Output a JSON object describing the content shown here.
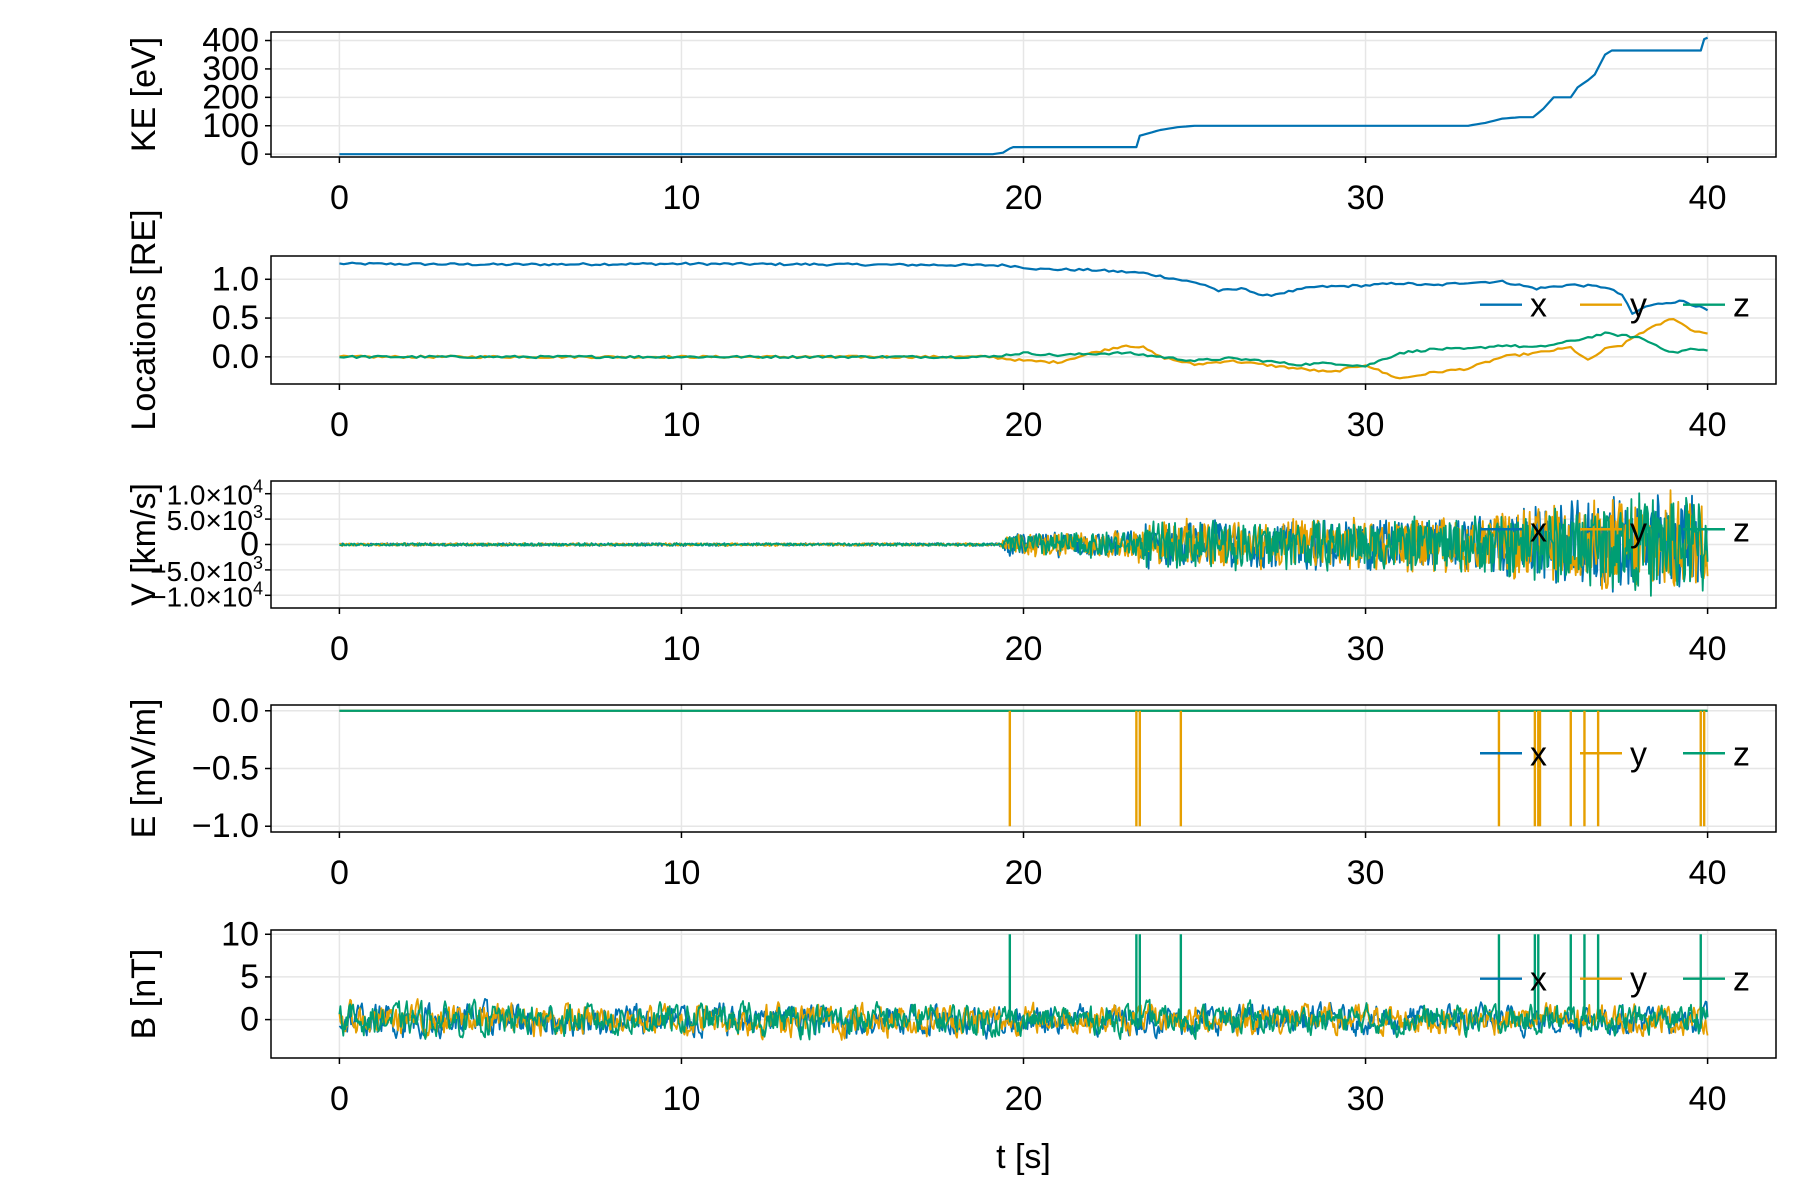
{
  "colors": {
    "x": "#0072B2",
    "y": "#E69F00",
    "z": "#009E73",
    "grid": "#e6e6e6",
    "frame": "#000000"
  },
  "chart_data": [
    {
      "type": "line",
      "ylabel": "KE [eV]",
      "xlabel": "",
      "xlim": [
        -2,
        42
      ],
      "ylim": [
        -10,
        430
      ],
      "xticks": [
        0,
        10,
        20,
        30,
        40
      ],
      "xtick_labels": [
        "0",
        "10",
        "20",
        "30",
        "40"
      ],
      "yticks": [
        0,
        100,
        200,
        300,
        400
      ],
      "ytick_labels": [
        "0",
        "100",
        "200",
        "300",
        "400"
      ],
      "legend": null,
      "series": [
        {
          "key": "x",
          "x": [
            0,
            19.1,
            19.4,
            19.6,
            19.7,
            23.3,
            23.4,
            24.0,
            24.5,
            25.0,
            29.0,
            33.0,
            33.5,
            34.0,
            34.5,
            34.9,
            35.2,
            35.5,
            36.0,
            36.2,
            36.5,
            36.7,
            37.0,
            37.2,
            39.2,
            39.8,
            39.9,
            40.0
          ],
          "y": [
            0,
            0,
            5,
            20,
            25,
            25,
            65,
            85,
            95,
            100,
            100,
            100,
            110,
            125,
            130,
            130,
            160,
            200,
            200,
            235,
            260,
            280,
            350,
            365,
            365,
            365,
            405,
            410
          ]
        }
      ]
    },
    {
      "type": "line",
      "ylabel": "Locations [RE]",
      "xlabel": "",
      "xlim": [
        -2,
        42
      ],
      "ylim": [
        -0.35,
        1.3
      ],
      "xticks": [
        0,
        10,
        20,
        30,
        40
      ],
      "xtick_labels": [
        "0",
        "10",
        "20",
        "30",
        "40"
      ],
      "yticks": [
        0.0,
        0.5,
        1.0
      ],
      "ytick_labels": [
        "0.0",
        "0.5",
        "1.0"
      ],
      "legend": {
        "position": "right",
        "entries": [
          "x",
          "y",
          "z"
        ]
      },
      "series": [
        {
          "key": "x",
          "x": [
            0,
            5,
            10,
            15,
            19.5,
            20.5,
            22,
            23.5,
            24.5,
            25.3,
            25.7,
            26.5,
            27,
            27.5,
            28.5,
            30,
            31,
            32,
            33,
            34,
            35,
            36,
            37,
            37.5,
            37.8,
            38.2,
            38.8,
            39.3,
            40
          ],
          "y": [
            1.2,
            1.19,
            1.2,
            1.19,
            1.18,
            1.13,
            1.12,
            1.08,
            1.0,
            0.93,
            0.85,
            0.88,
            0.78,
            0.82,
            0.9,
            0.92,
            0.95,
            0.92,
            0.96,
            0.97,
            0.88,
            0.93,
            0.9,
            0.8,
            0.55,
            0.65,
            0.7,
            0.72,
            0.6
          ]
        },
        {
          "key": "y",
          "x": [
            0,
            10,
            19,
            20,
            21,
            22,
            23,
            23.5,
            24,
            25,
            26,
            27,
            28,
            29,
            30,
            30.5,
            31,
            32,
            33,
            34,
            35,
            36,
            36.5,
            37,
            37.5,
            38,
            38.5,
            39,
            39.5,
            40
          ],
          "y": [
            0.0,
            0.0,
            0.0,
            -0.05,
            -0.07,
            0.05,
            0.15,
            0.12,
            0.0,
            -0.1,
            -0.05,
            -0.1,
            -0.15,
            -0.2,
            -0.1,
            -0.2,
            -0.28,
            -0.2,
            -0.15,
            0.0,
            0.05,
            0.12,
            -0.05,
            0.1,
            0.15,
            0.3,
            0.4,
            0.5,
            0.35,
            0.3
          ]
        },
        {
          "key": "z",
          "x": [
            0,
            10,
            19,
            20,
            21,
            22,
            23,
            24,
            25,
            26,
            27,
            28,
            29,
            30,
            31,
            32,
            33,
            34,
            35,
            36,
            37,
            38,
            38.5,
            39,
            39.5,
            40
          ],
          "y": [
            0.0,
            0.0,
            0.0,
            0.05,
            0.02,
            0.04,
            0.05,
            0.0,
            -0.05,
            -0.02,
            -0.05,
            -0.1,
            -0.08,
            -0.12,
            0.05,
            0.1,
            0.1,
            0.15,
            0.12,
            0.2,
            0.3,
            0.25,
            0.15,
            0.05,
            0.1,
            0.08
          ]
        }
      ]
    },
    {
      "type": "line",
      "ylabel": "V [km/s]",
      "xlabel": "",
      "xlim": [
        -2,
        42
      ],
      "ylim": [
        -12500,
        12500
      ],
      "xticks": [
        0,
        10,
        20,
        30,
        40
      ],
      "xtick_labels": [
        "0",
        "10",
        "20",
        "30",
        "40"
      ],
      "yticks": [
        -10000,
        -5000,
        0,
        5000,
        10000
      ],
      "ytick_labels": [
        [
          "−1.0×10",
          "4"
        ],
        [
          "−5.0×10",
          "3"
        ],
        [
          "0",
          ""
        ],
        [
          "5.0×10",
          "3"
        ],
        [
          "1.0×10",
          "4"
        ]
      ],
      "legend": {
        "position": "right",
        "entries": [
          "x",
          "y",
          "z"
        ]
      },
      "series_style": "oscillating",
      "envelope": {
        "t": [
          0,
          19.3,
          19.6,
          23.3,
          23.5,
          33,
          35,
          38,
          40
        ],
        "amp": [
          300,
          300,
          2500,
          3000,
          5000,
          6000,
          8000,
          11000,
          11000
        ]
      },
      "series": [
        {
          "key": "x"
        },
        {
          "key": "y"
        },
        {
          "key": "z"
        }
      ]
    },
    {
      "type": "line",
      "ylabel": "E [mV/m]",
      "xlabel": "",
      "xlim": [
        -2,
        42
      ],
      "ylim": [
        -1.05,
        0.05
      ],
      "xticks": [
        0,
        10,
        20,
        30,
        40
      ],
      "xtick_labels": [
        "0",
        "10",
        "20",
        "30",
        "40"
      ],
      "yticks": [
        -1.0,
        -0.5,
        0.0
      ],
      "ytick_labels": [
        "−1.0",
        "−0.5",
        "0.0"
      ],
      "legend": {
        "position": "right",
        "entries": [
          "x",
          "y",
          "z"
        ]
      },
      "spikes": {
        "key": "y",
        "t": [
          19.6,
          23.3,
          23.4,
          24.6,
          33.9,
          34.95,
          35.05,
          35.1,
          36.0,
          36.4,
          36.8,
          39.8,
          39.9
        ],
        "value": -1.0
      },
      "series": [
        {
          "key": "x",
          "value": 0.0
        },
        {
          "key": "y",
          "value": 0.0
        },
        {
          "key": "z",
          "value": 0.0
        }
      ]
    },
    {
      "type": "line",
      "ylabel": "B [nT]",
      "xlabel": "t [s]",
      "xlim": [
        -2,
        42
      ],
      "ylim": [
        -4.5,
        10.5
      ],
      "xticks": [
        0,
        10,
        20,
        30,
        40
      ],
      "xtick_labels": [
        "0",
        "10",
        "20",
        "30",
        "40"
      ],
      "yticks": [
        0,
        5,
        10
      ],
      "ytick_labels": [
        "0",
        "5",
        "10"
      ],
      "legend": {
        "position": "right",
        "entries": [
          "x",
          "y",
          "z"
        ]
      },
      "series_style": "noisy",
      "noise_amplitude": 2.5,
      "spikes": {
        "key": "z",
        "t": [
          19.6,
          23.3,
          23.4,
          24.6,
          33.9,
          34.95,
          35.05,
          36.0,
          36.4,
          36.8,
          39.8
        ],
        "value": 10
      },
      "series": [
        {
          "key": "x"
        },
        {
          "key": "y"
        },
        {
          "key": "z"
        }
      ]
    }
  ]
}
